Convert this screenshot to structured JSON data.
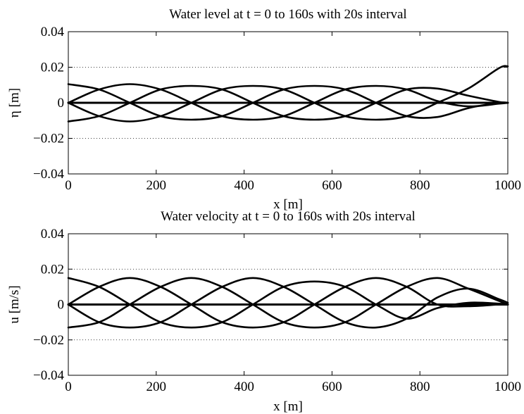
{
  "chart_data": [
    {
      "type": "line",
      "title": "Water level at t = 0 to 160s with 20s interval",
      "xlabel": "x [m]",
      "ylabel": "η [m]",
      "xlim": [
        0,
        1000
      ],
      "ylim": [
        -0.04,
        0.04
      ],
      "xticks": [
        0,
        200,
        400,
        600,
        800,
        1000
      ],
      "yticks": [
        -0.04,
        -0.02,
        0,
        0.02,
        0.04
      ],
      "xtick_labels": [
        "0",
        "200",
        "400",
        "600",
        "800",
        "1000"
      ],
      "ytick_labels": [
        "−0.04",
        "−0.02",
        "0",
        "0.02",
        "0.04"
      ],
      "grid": "horizontal dotted",
      "color": "#000000",
      "series": [
        {
          "x": [
            0,
            1000
          ],
          "values": [
            0,
            0
          ]
        },
        {
          "x": [
            0,
            70,
            140,
            210,
            280,
            350,
            420,
            490,
            560,
            630,
            700,
            770,
            840,
            910,
            980,
            1000
          ],
          "values": [
            0.0105,
            0.0075,
            0,
            -0.0075,
            -0.0095,
            -0.0075,
            0,
            0.0075,
            0.0095,
            0.0075,
            0,
            -0.0075,
            -0.008,
            -0.003,
            0,
            0
          ]
        },
        {
          "x": [
            0,
            70,
            140,
            210,
            280,
            350,
            420,
            490,
            560,
            630,
            700,
            770,
            840,
            910,
            980,
            1000
          ],
          "values": [
            -0.0105,
            -0.0075,
            0,
            0.0075,
            0.0095,
            0.0075,
            0,
            -0.0075,
            -0.0095,
            -0.0075,
            0,
            0.0075,
            0.008,
            0.004,
            0.0005,
            0
          ]
        },
        {
          "x": [
            0,
            70,
            140,
            210,
            280,
            350,
            420,
            490,
            560,
            630,
            700,
            770,
            840,
            910,
            980,
            1000
          ],
          "values": [
            0,
            0.0075,
            0.0105,
            0.0075,
            0,
            -0.0075,
            -0.0095,
            -0.0075,
            0,
            0.0075,
            0.0095,
            0.0075,
            0.001,
            -0.002,
            -0.0005,
            0
          ]
        },
        {
          "x": [
            0,
            70,
            140,
            210,
            280,
            350,
            420,
            490,
            560,
            630,
            700,
            770,
            840,
            910,
            980,
            1000
          ],
          "values": [
            0,
            -0.0075,
            -0.0105,
            -0.0075,
            0,
            0.0075,
            0.0095,
            0.0075,
            0,
            -0.0075,
            -0.0095,
            -0.0075,
            0,
            0.008,
            0.0195,
            0.0205
          ]
        }
      ]
    },
    {
      "type": "line",
      "title": "Water velocity at t = 0 to 160s with 20s interval",
      "xlabel": "x [m]",
      "ylabel": "u [m/s]",
      "xlim": [
        0,
        1000
      ],
      "ylim": [
        -0.04,
        0.04
      ],
      "xticks": [
        0,
        200,
        400,
        600,
        800,
        1000
      ],
      "yticks": [
        -0.04,
        -0.02,
        0,
        0.02,
        0.04
      ],
      "xtick_labels": [
        "0",
        "200",
        "400",
        "600",
        "800",
        "1000"
      ],
      "ytick_labels": [
        "−0.04",
        "−0.02",
        "0",
        "0.02",
        "0.04"
      ],
      "grid": "horizontal dotted",
      "color": "#000000",
      "series": [
        {
          "x": [
            0,
            1000
          ],
          "values": [
            0,
            0
          ]
        },
        {
          "x": [
            0,
            70,
            140,
            210,
            280,
            350,
            420,
            490,
            560,
            630,
            700,
            770,
            840,
            910,
            980,
            1000
          ],
          "values": [
            0.015,
            0.01,
            0,
            -0.01,
            -0.013,
            -0.01,
            0,
            0.01,
            0.013,
            0.01,
            0,
            -0.008,
            -0.002,
            0.001,
            0.0005,
            0
          ]
        },
        {
          "x": [
            0,
            70,
            140,
            210,
            280,
            350,
            420,
            490,
            560,
            630,
            700,
            770,
            840,
            910,
            980,
            1000
          ],
          "values": [
            -0.013,
            -0.01,
            0,
            0.01,
            0.015,
            0.01,
            0,
            -0.01,
            -0.013,
            -0.01,
            0,
            0.01,
            0.015,
            0.009,
            0.002,
            0
          ]
        },
        {
          "x": [
            0,
            70,
            140,
            210,
            280,
            350,
            420,
            490,
            560,
            630,
            700,
            770,
            840,
            910,
            980,
            1000
          ],
          "values": [
            0,
            0.01,
            0.015,
            0.01,
            0,
            -0.01,
            -0.013,
            -0.01,
            0,
            0.01,
            0.015,
            0.01,
            0,
            -0.001,
            0,
            0
          ]
        },
        {
          "x": [
            0,
            70,
            140,
            210,
            280,
            350,
            420,
            490,
            560,
            630,
            700,
            770,
            840,
            910,
            980,
            1000
          ],
          "values": [
            0,
            -0.01,
            -0.013,
            -0.01,
            0,
            0.01,
            0.015,
            0.01,
            0,
            -0.01,
            -0.013,
            -0.008,
            0.004,
            0.009,
            0.003,
            0.001
          ]
        }
      ]
    }
  ]
}
